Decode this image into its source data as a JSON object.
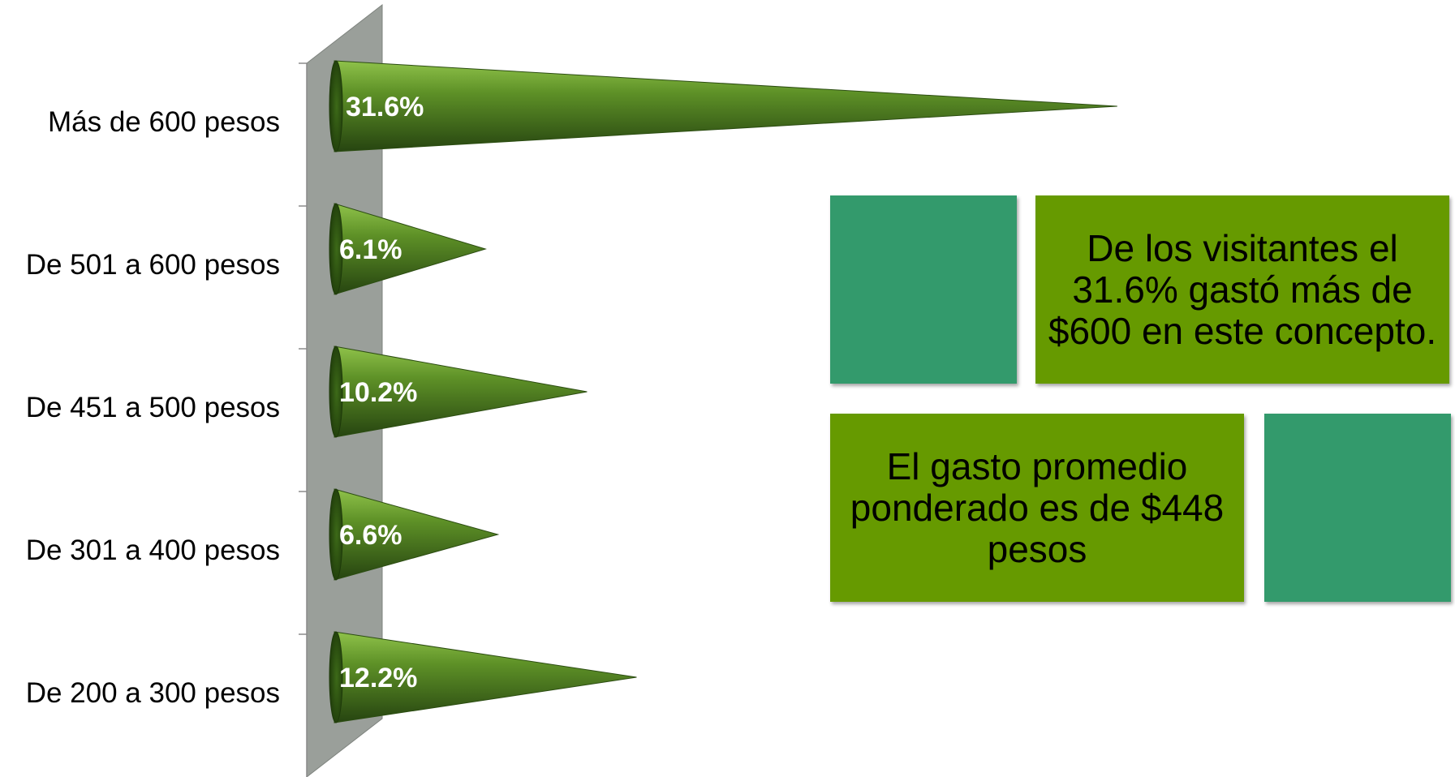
{
  "chart_data": {
    "type": "bar",
    "orientation": "horizontal",
    "bar_shape": "cone",
    "categories": [
      "Más de 600 pesos",
      "De 501 a 600 pesos",
      "De 451 a 500 pesos",
      "De 301 a 400 pesos",
      "De 200 a 300 pesos"
    ],
    "values": [
      31.6,
      6.1,
      10.2,
      6.6,
      12.2
    ],
    "data_labels": [
      "31.6%",
      "6.1%",
      "10.2%",
      "6.6%",
      "12.2%"
    ],
    "unit": "%",
    "xlim": [
      0,
      32
    ],
    "grid": false,
    "legend": "none",
    "colors": {
      "bar": "#4e7d1f",
      "bar_highlight": "#8fc24a",
      "bar_shadow": "#264410",
      "wall": "#9a9f9a",
      "label": "#ffffff"
    }
  },
  "callouts": {
    "visitors_text": "De los visitantes el 31.6% gastó más de $600 en este concepto.",
    "average_text": "El gasto promedio ponderado es de $448 pesos",
    "colors": {
      "teal": "#339a6c",
      "green": "#669a00"
    }
  }
}
